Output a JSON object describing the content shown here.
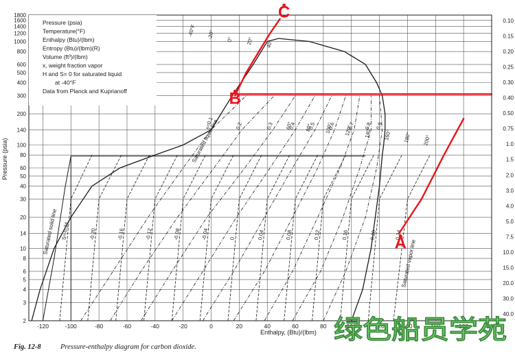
{
  "chart_data": {
    "type": "line",
    "title": "",
    "xlabel": "Enthalpy, (Btu)/(lbm)",
    "ylabel": "Pressure (psia)",
    "xlim": [
      -130,
      200
    ],
    "ylim": [
      2,
      1800
    ],
    "yscale": "log",
    "x_ticks": [
      -120,
      -100,
      -80,
      -60,
      -40,
      -20,
      0,
      20,
      40,
      60,
      80,
      100,
      120,
      140,
      160,
      180,
      200
    ],
    "y_ticks": [
      2,
      3,
      4,
      5,
      6,
      8,
      10,
      14,
      20,
      30,
      40,
      50,
      60,
      80,
      100,
      140,
      200,
      300,
      400,
      500,
      600,
      800,
      1000,
      1200,
      1400,
      1600,
      1800
    ],
    "right_ticks": [
      "0.10",
      "0.15",
      "0.20",
      "0.25",
      "0.30",
      "0.40",
      "0.50",
      "0.75",
      "1.0",
      "1.5",
      "2.0",
      "3.0",
      "4.0",
      "5.0",
      "7.5",
      "10.0",
      "15.0",
      "20.0",
      "30.0",
      "40.0"
    ],
    "legend_lines": [
      "Pressure (psia)",
      "Temperature(°F)",
      "Enthalpy (Btu)/(lbm)",
      "Entropy (Btu)/(lbm)(R)",
      "Volume (ft³)/(lbm)",
      "x, weight fraction vapor",
      "H and S= 0 for saturated liquid",
      "at -40°F",
      "Data from Planck and Kuprianoff"
    ],
    "curve_labels": {
      "saturated_liquid": "Saturated liquid line",
      "saturated_vapor": "Saturated vapor line",
      "saturated_solid": "Saturated solid line"
    },
    "quality_labels": [
      "x=0.1",
      "0.2",
      "0.3",
      "0.4",
      "0.5",
      "0.6",
      "0.7",
      "0.8",
      "0.9"
    ],
    "entropy_labels": [
      "S=-0.24",
      "-0.20",
      "-0.16",
      "-0.12",
      "-0.08",
      "-0.04",
      "0",
      "0.04",
      "0.08",
      "0.12",
      "0.16",
      "0.20",
      "0.24",
      "0.28",
      "0.32",
      "0.36",
      "0.40",
      "0.44",
      "0.48"
    ],
    "temperature_labels": [
      "-40°F",
      "-20°",
      "0°",
      "20°",
      "40°",
      "60°",
      "80°",
      "100°",
      "120°",
      "140°",
      "160°",
      "180°",
      "200°"
    ],
    "series": [
      {
        "name": "Saturated liquid line",
        "x": [
          -128,
          -122,
          -112,
          -100,
          -85,
          -65,
          -40,
          -20,
          0,
          15,
          30,
          40,
          48
        ],
        "y": [
          2,
          4,
          10,
          20,
          40,
          60,
          80,
          100,
          140,
          300,
          600,
          1000,
          1070
        ]
      },
      {
        "name": "Saturated vapor line",
        "x": [
          100,
          108,
          114,
          120,
          122,
          123,
          124,
          124,
          122,
          118,
          110,
          95,
          70,
          48
        ],
        "y": [
          2,
          4,
          10,
          40,
          80,
          100,
          140,
          200,
          300,
          400,
          600,
          800,
          1000,
          1070
        ]
      }
    ],
    "constant_quality_lines": [
      {
        "label": "x=0.1",
        "x": [
          -93,
          -70,
          -45,
          -20,
          0,
          25
        ],
        "y": [
          2,
          6,
          20,
          60,
          140,
          300
        ]
      },
      {
        "label": "0.2",
        "x": [
          -72,
          -50,
          -24,
          2,
          22,
          45
        ],
        "y": [
          2,
          6,
          20,
          60,
          140,
          300
        ]
      },
      {
        "label": "0.3",
        "x": [
          -50,
          -28,
          -3,
          24,
          44,
          60
        ],
        "y": [
          2,
          6,
          20,
          60,
          140,
          300
        ]
      },
      {
        "label": "0.4",
        "x": [
          -28,
          -6,
          18,
          42,
          60,
          74
        ],
        "y": [
          2,
          6,
          20,
          60,
          140,
          300
        ]
      },
      {
        "label": "0.5",
        "x": [
          -6,
          16,
          38,
          58,
          74,
          86
        ],
        "y": [
          2,
          6,
          20,
          60,
          140,
          300
        ]
      },
      {
        "label": "0.6",
        "x": [
          16,
          38,
          58,
          76,
          88,
          96
        ],
        "y": [
          2,
          6,
          20,
          60,
          140,
          300
        ]
      },
      {
        "label": "0.7",
        "x": [
          38,
          58,
          76,
          92,
          102,
          106
        ],
        "y": [
          2,
          6,
          20,
          60,
          140,
          300
        ]
      },
      {
        "label": "0.8",
        "x": [
          58,
          78,
          94,
          106,
          114,
          114
        ],
        "y": [
          2,
          6,
          20,
          60,
          140,
          300
        ]
      },
      {
        "label": "0.9",
        "x": [
          80,
          96,
          110,
          118,
          122,
          120
        ],
        "y": [
          2,
          6,
          20,
          60,
          140,
          300
        ]
      }
    ],
    "constant_entropy_lines": [
      {
        "label": "S=-0.24",
        "x": [
          -108,
          -100,
          -85
        ],
        "y": [
          2,
          30,
          80
        ]
      },
      {
        "label": "-0.20",
        "x": [
          -88,
          -80,
          -64
        ],
        "y": [
          2,
          30,
          80
        ]
      },
      {
        "label": "-0.16",
        "x": [
          -68,
          -60,
          -44
        ],
        "y": [
          2,
          30,
          80
        ]
      },
      {
        "label": "-0.12",
        "x": [
          -48,
          -40,
          -24
        ],
        "y": [
          2,
          30,
          80
        ]
      },
      {
        "label": "-0.08",
        "x": [
          -28,
          -20,
          -4
        ],
        "y": [
          2,
          30,
          80
        ]
      },
      {
        "label": "-0.04",
        "x": [
          -8,
          0,
          16
        ],
        "y": [
          2,
          30,
          80
        ]
      },
      {
        "label": "0",
        "x": [
          12,
          20,
          36
        ],
        "y": [
          2,
          30,
          80
        ]
      },
      {
        "label": "0.04",
        "x": [
          32,
          40,
          56
        ],
        "y": [
          2,
          30,
          80
        ]
      },
      {
        "label": "0.08",
        "x": [
          52,
          60,
          76
        ],
        "y": [
          2,
          30,
          80
        ]
      },
      {
        "label": "0.12",
        "x": [
          72,
          80,
          96
        ],
        "y": [
          2,
          30,
          80
        ]
      },
      {
        "label": "0.16",
        "x": [
          92,
          100,
          116
        ],
        "y": [
          2,
          30,
          80
        ]
      },
      {
        "label": "0.20",
        "x": [
          112,
          120,
          136
        ],
        "y": [
          2,
          30,
          80
        ]
      },
      {
        "label": "0.24",
        "x": [
          130,
          140,
          156
        ],
        "y": [
          2,
          30,
          80
        ]
      }
    ],
    "highlight_lines": [
      {
        "name": "red-line-A",
        "x": [
          134,
          150,
          166,
          180
        ],
        "y": [
          14,
          30,
          80,
          180
        ],
        "color": "#e8141c"
      },
      {
        "name": "red-line-BC",
        "x": [
          17,
          25,
          34,
          42,
          49
        ],
        "y": [
          300,
          500,
          800,
          1200,
          1650
        ],
        "color": "#e8141c"
      },
      {
        "name": "red-line-horizontal",
        "x": [
          17,
          200
        ],
        "y": [
          310,
          310
        ],
        "color": "#e8141c"
      }
    ],
    "points": [
      {
        "label": "A",
        "x": 135,
        "y": 10,
        "color": "#e8141c"
      },
      {
        "label": "B",
        "x": 17,
        "y": 250,
        "color": "#e8141c"
      },
      {
        "label": "C",
        "x": 52,
        "y": 1700,
        "color": "#e8141c"
      }
    ],
    "caption_number": "Fig. 12-8",
    "caption_text": "Pressure-enthalpy diagram for carbon dioxide.",
    "watermark": "绿色船员学苑",
    "colors": {
      "ink": "#1a1a1a",
      "highlight": "#e8141c",
      "paper": "#ffffff",
      "watermark": "#7be07b"
    }
  }
}
